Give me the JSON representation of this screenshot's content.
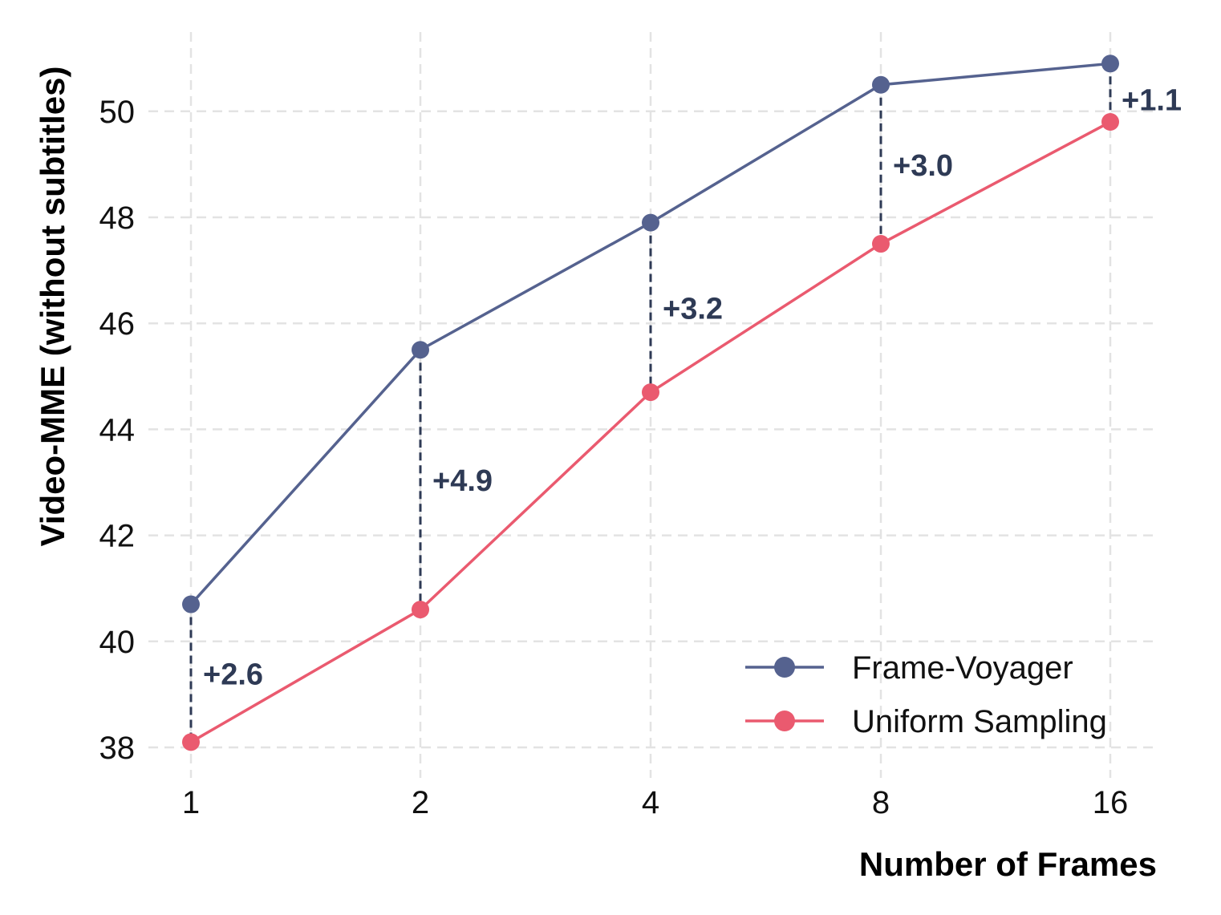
{
  "chart_data": {
    "type": "line",
    "xlabel": "Number of Frames",
    "ylabel": "Video-MME (without subtitles)",
    "categories": [
      "1",
      "2",
      "4",
      "8",
      "16"
    ],
    "yticks": [
      38,
      40,
      42,
      44,
      46,
      48,
      50
    ],
    "ylim": [
      37,
      51.5
    ],
    "grid": true,
    "legend_position": "bottom-right",
    "series": [
      {
        "name": "Frame-Voyager",
        "color": "#55628f",
        "values": [
          40.7,
          45.5,
          47.9,
          50.5,
          50.9
        ]
      },
      {
        "name": "Uniform Sampling",
        "color": "#ea5a6f",
        "values": [
          38.1,
          40.6,
          44.7,
          47.5,
          49.8
        ]
      }
    ],
    "differences": [
      "+2.6",
      "+4.9",
      "+3.2",
      "+3.0",
      "+1.1"
    ],
    "difference_color": "#2e3a55"
  }
}
